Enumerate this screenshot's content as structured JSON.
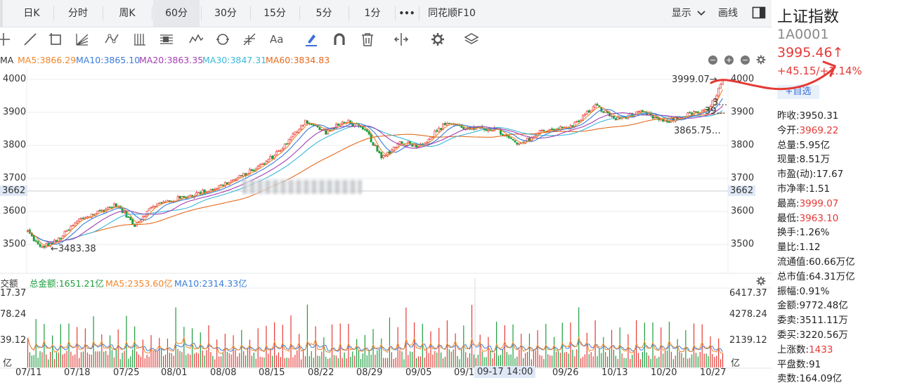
{
  "tabs": [
    {
      "label": "日K",
      "active": false
    },
    {
      "label": "分时",
      "active": false
    },
    {
      "label": "周K",
      "active": false
    },
    {
      "label": "60分",
      "active": true
    },
    {
      "label": "30分",
      "active": false
    },
    {
      "label": "15分",
      "active": false
    },
    {
      "label": "5分",
      "active": false
    },
    {
      "label": "1分",
      "active": false
    },
    {
      "label": "•••",
      "active": false
    },
    {
      "label": "同花顺F10",
      "active": false
    }
  ],
  "tabs_right": {
    "display_label": "显示",
    "draw_label": "画线"
  },
  "toolbar": {
    "font_tool_label": "Aa"
  },
  "ma_legend": {
    "prefix": "MA",
    "ma5": "MA5:3866.29",
    "ma10": "MA10:3865.10",
    "ma20": "MA20:3863.35",
    "ma30": "MA30:3847.31",
    "ma60": "MA60:3834.83"
  },
  "price_axis": {
    "ticks_left": [
      "4000",
      "3900",
      "3800",
      "3700",
      "3662",
      "3600",
      "3500"
    ],
    "ticks_right": [
      "4000",
      "3900",
      "3800",
      "3700",
      "3662",
      "3600",
      "3500"
    ],
    "crosshair_value": "3662"
  },
  "annotations": {
    "high": "3999.07→",
    "low": "←3483.38",
    "right_a": "3…",
    "right_b": "39…",
    "right_c": "3865.75…"
  },
  "volume": {
    "title": "成交额",
    "total": "总金额:1651.21亿",
    "ma5": "MA5:2353.60亿",
    "ma10": "MA10:2314.33亿",
    "ticks_left": [
      "17.37",
      "78.24",
      "39.12",
      "亿"
    ],
    "ticks_right": [
      "6417.37",
      "4278.24",
      "2139.12",
      "亿"
    ]
  },
  "x_axis": {
    "dates": [
      "07/11",
      "07/18",
      "07/25",
      "08/01",
      "08/08",
      "08/15",
      "08/22",
      "08/29",
      "09/05",
      "09/1",
      "09/26",
      "10/13",
      "10/20",
      "10/27"
    ],
    "crosshair_label": "09-17 14:00"
  },
  "side": {
    "title": "上证指数",
    "code": "1A0001",
    "price": "3995.46↑",
    "change": "+45.15/+1.14%",
    "fav": "+自选",
    "stats": [
      {
        "k": "昨收:",
        "v": "3950.31",
        "red": false
      },
      {
        "k": "今开:",
        "v": "3969.22",
        "red": true
      },
      {
        "k": "总量:",
        "v": "5.95亿",
        "red": false
      },
      {
        "k": "现量:",
        "v": "8.51万",
        "red": false
      },
      {
        "k": "市盈(动):",
        "v": "17.67",
        "red": false
      },
      {
        "k": "市净率:",
        "v": "1.51",
        "red": false
      },
      {
        "k": "最高:",
        "v": "3999.07",
        "red": true
      },
      {
        "k": "最低:",
        "v": "3963.10",
        "red": true
      },
      {
        "k": "换手:",
        "v": "1.26%",
        "red": false
      },
      {
        "k": "量比:",
        "v": "1.12",
        "red": false
      },
      {
        "k": "流通值:",
        "v": "60.66万亿",
        "red": false
      },
      {
        "k": "总市值:",
        "v": "64.31万亿",
        "red": false
      },
      {
        "k": "振幅:",
        "v": "0.91%",
        "red": false
      },
      {
        "k": "金额:",
        "v": "9772.48亿",
        "red": false
      },
      {
        "k": "委卖:",
        "v": "3511.11万",
        "red": false
      },
      {
        "k": "委买:",
        "v": "3220.56万",
        "red": false
      },
      {
        "k": "上涨数:",
        "v": "1433",
        "red": true
      },
      {
        "k": "平盘数:",
        "v": "91",
        "red": false
      },
      {
        "k": "卖数:",
        "v": "164.09亿",
        "red": false
      }
    ]
  },
  "colors": {
    "up": "#e53935",
    "down": "#1a9c3c",
    "ma5": "#f0862a",
    "ma10": "#3b7dd8",
    "ma20": "#a43fb0",
    "ma30": "#3bb8d8",
    "ma60": "#e36b1e"
  },
  "chart_data": {
    "type": "candlestick",
    "timeframe": "60分",
    "ylim": [
      3440,
      4020
    ],
    "anchors": [
      [
        0,
        3540
      ],
      [
        6,
        3490
      ],
      [
        14,
        3510
      ],
      [
        25,
        3575
      ],
      [
        33,
        3595
      ],
      [
        43,
        3620
      ],
      [
        52,
        3560
      ],
      [
        61,
        3618
      ],
      [
        74,
        3640
      ],
      [
        89,
        3665
      ],
      [
        102,
        3700
      ],
      [
        115,
        3745
      ],
      [
        125,
        3800
      ],
      [
        135,
        3875
      ],
      [
        145,
        3840
      ],
      [
        155,
        3875
      ],
      [
        165,
        3840
      ],
      [
        172,
        3760
      ],
      [
        181,
        3810
      ],
      [
        191,
        3800
      ],
      [
        204,
        3870
      ],
      [
        214,
        3850
      ],
      [
        227,
        3850
      ],
      [
        239,
        3800
      ],
      [
        250,
        3845
      ],
      [
        264,
        3855
      ],
      [
        276,
        3920
      ],
      [
        286,
        3880
      ],
      [
        299,
        3900
      ],
      [
        310,
        3870
      ],
      [
        322,
        3895
      ],
      [
        331,
        3905
      ],
      [
        338,
        3995
      ]
    ],
    "volume_ylim": [
      0,
      6417.37
    ]
  }
}
